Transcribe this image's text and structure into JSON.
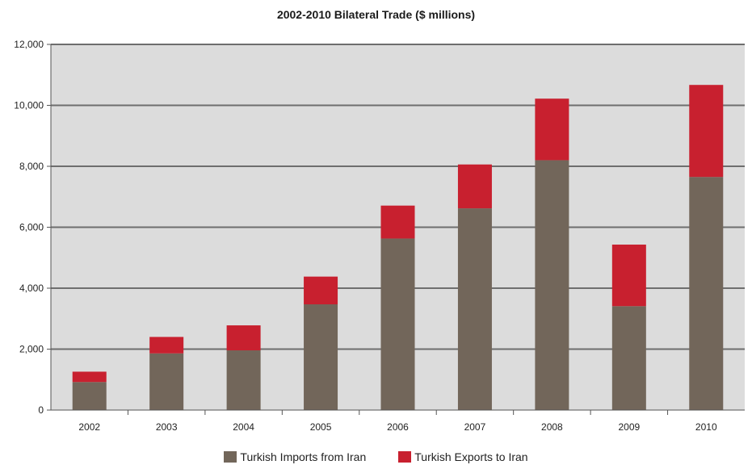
{
  "chart_data": {
    "type": "bar",
    "stacked": true,
    "title": "2002-2010 Bilateral Trade ($ millions)",
    "categories": [
      "2002",
      "2003",
      "2004",
      "2005",
      "2006",
      "2007",
      "2008",
      "2009",
      "2010"
    ],
    "series": [
      {
        "name": "Turkish Imports from Iran",
        "color": "#72665a",
        "values": [
          920,
          1860,
          1960,
          3470,
          5630,
          6620,
          8200,
          3410,
          7650
        ]
      },
      {
        "name": "Turkish Exports to Iran",
        "color": "#c8202f",
        "values": [
          340,
          540,
          820,
          910,
          1080,
          1440,
          2020,
          2020,
          3020
        ]
      }
    ],
    "ylim": [
      0,
      12000
    ],
    "yticks": [
      "0",
      "2,000",
      "4,000",
      "6,000",
      "8,000",
      "10,000",
      "12,000"
    ],
    "ytick_values": [
      0,
      2000,
      4000,
      6000,
      8000,
      10000,
      12000
    ],
    "grid": true,
    "plot_background": "#dcdcdc",
    "grid_color": "#6e6e6e",
    "legend_position": "bottom"
  }
}
